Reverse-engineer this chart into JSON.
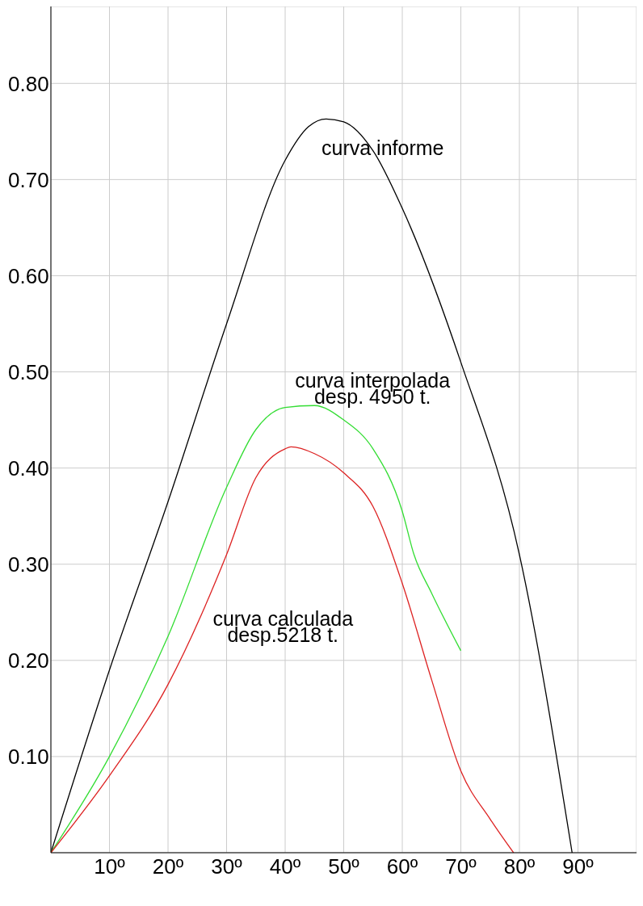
{
  "chart_data": {
    "type": "line",
    "xlim": [
      0,
      100
    ],
    "ylim": [
      0,
      0.88
    ],
    "grid": true,
    "line_style": "solid",
    "marker": "none",
    "xticks": [
      {
        "value": 10,
        "label": "10º"
      },
      {
        "value": 20,
        "label": "20º"
      },
      {
        "value": 30,
        "label": "30º"
      },
      {
        "value": 40,
        "label": "40º"
      },
      {
        "value": 50,
        "label": "50º"
      },
      {
        "value": 60,
        "label": "60º"
      },
      {
        "value": 70,
        "label": "70º"
      },
      {
        "value": 80,
        "label": "80º"
      },
      {
        "value": 90,
        "label": "90º"
      }
    ],
    "yticks": [
      {
        "value": 0.1,
        "label": "0.10"
      },
      {
        "value": 0.2,
        "label": "0.20"
      },
      {
        "value": 0.3,
        "label": "0.30"
      },
      {
        "value": 0.4,
        "label": "0.40"
      },
      {
        "value": 0.5,
        "label": "0.50"
      },
      {
        "value": 0.6,
        "label": "0.60"
      },
      {
        "value": 0.7,
        "label": "0.70"
      },
      {
        "value": 0.8,
        "label": "0.80"
      }
    ],
    "series": [
      {
        "name": "curva informe",
        "color": "#000000",
        "x": [
          0,
          10,
          20,
          30,
          40,
          44,
          47,
          50,
          55,
          60,
          70,
          80,
          89
        ],
        "values": [
          0,
          0.19,
          0.365,
          0.55,
          0.72,
          0.755,
          0.763,
          0.76,
          0.73,
          0.67,
          0.51,
          0.31,
          0
        ]
      },
      {
        "name": "curva interpolada\ndesp. 4950 t.",
        "color": "#33dd33",
        "x": [
          0,
          10,
          20,
          30,
          35,
          40,
          45,
          50,
          55,
          60,
          62,
          65,
          70
        ],
        "values": [
          0,
          0.1,
          0.225,
          0.38,
          0.44,
          0.463,
          0.465,
          0.45,
          0.42,
          0.355,
          0.31,
          0.27,
          0.21
        ]
      },
      {
        "name": "curva calculada\ndesp.5218 t.",
        "color": "#dd2222",
        "x": [
          0,
          10,
          20,
          30,
          35,
          40,
          41,
          45,
          50,
          55,
          60,
          65,
          70,
          75,
          79
        ],
        "values": [
          0,
          0.08,
          0.175,
          0.31,
          0.39,
          0.42,
          0.422,
          0.415,
          0.395,
          0.36,
          0.28,
          0.18,
          0.085,
          0.035,
          0
        ]
      }
    ]
  }
}
